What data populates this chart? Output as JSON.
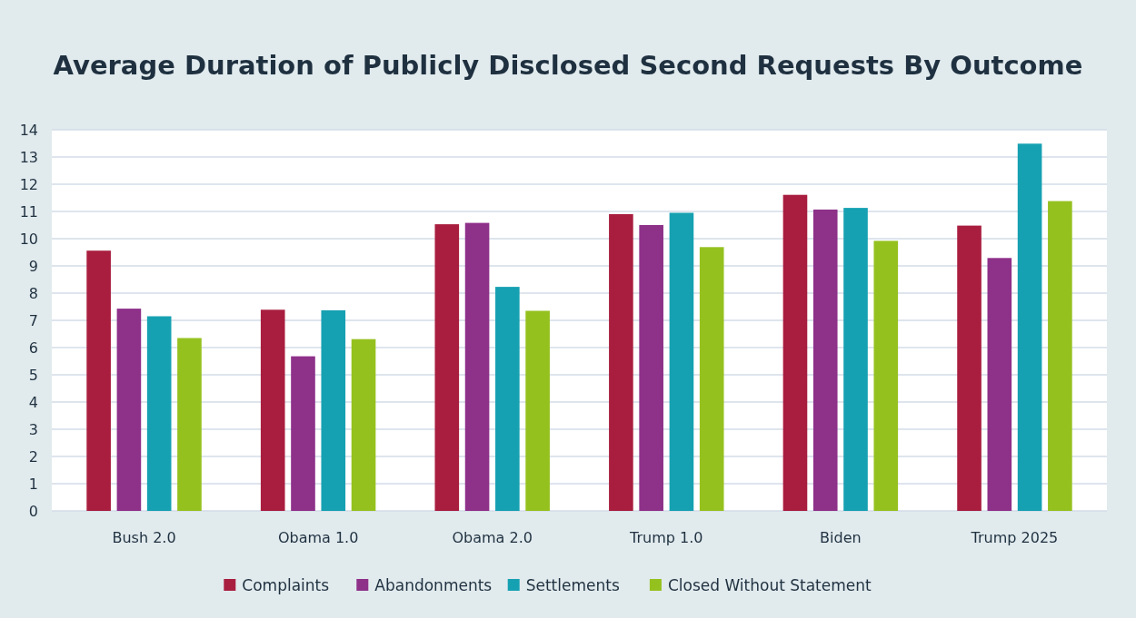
{
  "chart_data": {
    "type": "bar",
    "title": "Average Duration of Publicly Disclosed Second Requests By Outcome",
    "categories": [
      "Bush 2.0",
      "Obama 1.0",
      "Obama 2.0",
      "Trump 1.0",
      "Biden",
      "Trump 2025"
    ],
    "series": [
      {
        "name": "Complaints",
        "color": "#a91e3f",
        "values": [
          9.56,
          7.39,
          10.53,
          10.9,
          11.61,
          10.48
        ]
      },
      {
        "name": "Abandonments",
        "color": "#8e3189",
        "values": [
          7.43,
          5.68,
          10.58,
          10.5,
          11.07,
          9.29
        ]
      },
      {
        "name": "Settlements",
        "color": "#16a1b2",
        "values": [
          7.15,
          7.37,
          8.23,
          10.95,
          11.13,
          13.49
        ]
      },
      {
        "name": "Closed Without Statement",
        "color": "#95c11f",
        "values": [
          6.35,
          6.31,
          7.35,
          9.69,
          9.92,
          11.38
        ]
      }
    ],
    "ylim": [
      0,
      14
    ],
    "yticks": [
      0,
      1,
      2,
      3,
      4,
      5,
      6,
      7,
      8,
      9,
      10,
      11,
      12,
      13,
      14
    ],
    "grid": "y",
    "legend": "bottom"
  }
}
